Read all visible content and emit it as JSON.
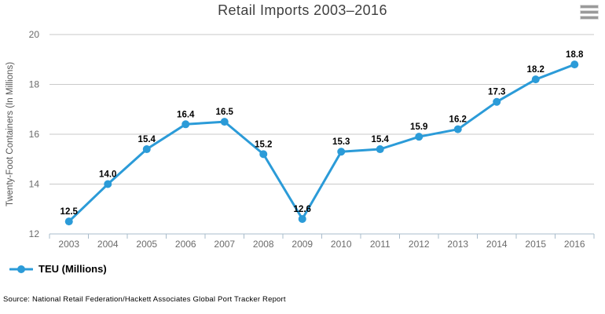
{
  "header": {
    "title": "Retail Imports 2003–2016"
  },
  "chart_data": {
    "type": "line",
    "title": "Retail Imports 2003–2016",
    "categories": [
      "2003",
      "2004",
      "2005",
      "2006",
      "2007",
      "2008",
      "2009",
      "2010",
      "2011",
      "2012",
      "2013",
      "2014",
      "2015",
      "2016"
    ],
    "series": [
      {
        "name": "TEU (Millions)",
        "values": [
          12.5,
          14.0,
          15.4,
          16.4,
          16.5,
          15.2,
          12.6,
          15.3,
          15.4,
          15.9,
          16.2,
          17.3,
          18.2,
          18.8
        ],
        "color": "#2b9bd8"
      }
    ],
    "xlabel": "",
    "ylabel": "Twenty-Foot Containers (In Millions)",
    "ylim": [
      12,
      20
    ],
    "yticks": [
      12,
      14,
      16,
      18,
      20
    ],
    "grid": true,
    "data_labels": true,
    "data_label_decimals": 1,
    "legend_position": "bottom-left"
  },
  "legend": {
    "items": [
      {
        "label": "TEU (Millions)",
        "color": "#2b9bd8"
      }
    ]
  },
  "footer": {
    "source": "Source: National Retail Federation/Hackett Associates Global Port Tracker Report"
  },
  "icons": {
    "menu": "hamburger-menu-icon",
    "legend_marker": "line-with-dot-marker-icon"
  },
  "colors": {
    "accent": "#2b9bd8",
    "grid": "#c9c9c9",
    "axis": "#a9bccb",
    "tick_label": "#6b6b6b",
    "title": "#3f3f3f",
    "data_label": "#000000",
    "menu_icon": "#9a9a9a"
  }
}
